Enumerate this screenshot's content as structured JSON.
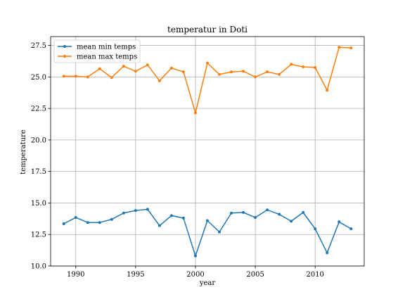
{
  "chart_data": {
    "type": "line",
    "title": "temperatur in Doti",
    "xlabel": "year",
    "ylabel": "temperature",
    "xlim": [
      1987.9,
      2014.1
    ],
    "ylim": [
      10.0,
      28.2
    ],
    "xticks": [
      1990,
      1995,
      2000,
      2005,
      2010
    ],
    "yticks": [
      "10.0",
      "12.5",
      "15.0",
      "17.5",
      "20.0",
      "22.5",
      "25.0",
      "27.5"
    ],
    "grid": true,
    "legend_position": "top-left",
    "x": [
      1989,
      1990,
      1991,
      1992,
      1993,
      1994,
      1995,
      1996,
      1997,
      1998,
      1999,
      2000,
      2001,
      2002,
      2003,
      2004,
      2005,
      2006,
      2007,
      2008,
      2009,
      2010,
      2011,
      2012,
      2013
    ],
    "series": [
      {
        "name": "mean min temps",
        "color": "#1f77b4",
        "values": [
          13.35,
          13.85,
          13.45,
          13.45,
          13.7,
          14.2,
          14.4,
          14.5,
          13.2,
          14.0,
          13.8,
          10.8,
          13.6,
          12.7,
          14.2,
          14.25,
          13.85,
          14.45,
          14.1,
          13.55,
          14.25,
          12.95,
          11.05,
          13.5,
          12.95
        ]
      },
      {
        "name": "mean max temps",
        "color": "#ff7f0e",
        "values": [
          25.05,
          25.05,
          25.0,
          25.65,
          24.95,
          25.85,
          25.45,
          25.95,
          24.7,
          25.7,
          25.4,
          22.15,
          26.1,
          25.2,
          25.4,
          25.45,
          25.0,
          25.4,
          25.2,
          26.0,
          25.8,
          25.75,
          23.95,
          27.35,
          27.3
        ]
      }
    ]
  }
}
